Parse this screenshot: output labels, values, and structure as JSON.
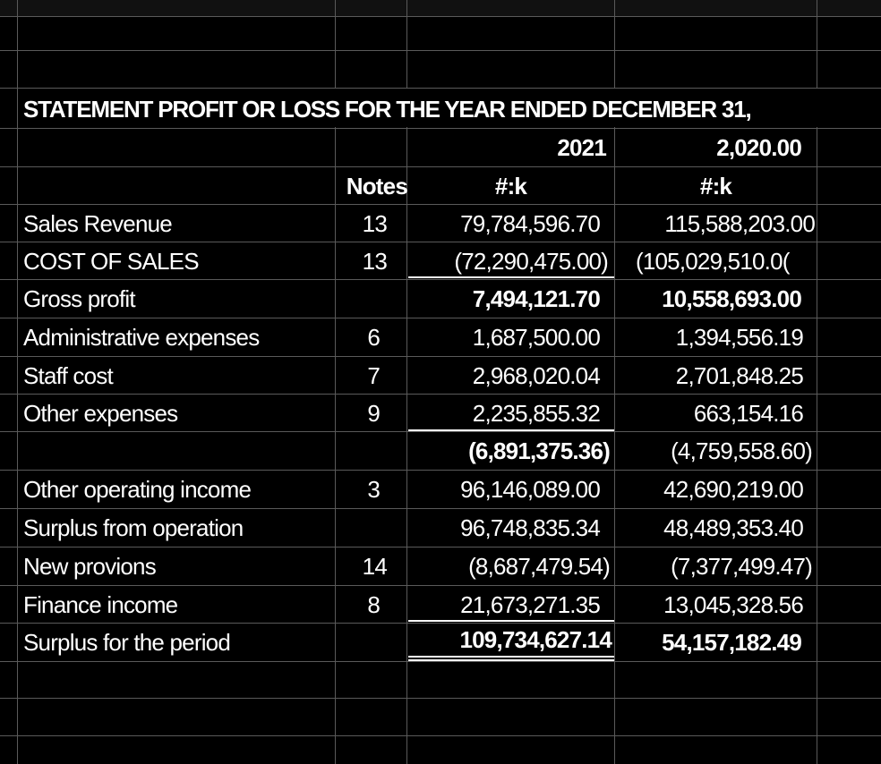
{
  "sheet": {
    "title": "STATEMENT PROFIT OR LOSS FOR  THE YEAR ENDED DECEMBER 31,",
    "header_row": {
      "year_current": "2021",
      "year_prior": "2,020.00"
    },
    "subheader_row": {
      "notes_label": "Notes",
      "currency_current": "#:k",
      "currency_prior": "#:k"
    },
    "rows": [
      {
        "label": "Sales Revenue",
        "note": "13",
        "current": "79,784,596.70",
        "prior": "115,588,203.00"
      },
      {
        "label": "COST OF SALES",
        "note": "13",
        "current": "(72,290,475.00)",
        "prior": "(105,029,510.0("
      },
      {
        "label": "Gross profit",
        "note": "",
        "current": "7,494,121.70",
        "prior": "10,558,693.00"
      },
      {
        "label": "Administrative expenses",
        "note": "6",
        "current": "1,687,500.00",
        "prior": "1,394,556.19"
      },
      {
        "label": "Staff cost",
        "note": "7",
        "current": "2,968,020.04",
        "prior": "2,701,848.25"
      },
      {
        "label": "Other expenses",
        "note": "9",
        "current": "2,235,855.32",
        "prior": "663,154.16"
      },
      {
        "label": "",
        "note": "",
        "current": "(6,891,375.36)",
        "prior": "(4,759,558.60)"
      },
      {
        "label": "Other operating income",
        "note": "3",
        "current": "96,146,089.00",
        "prior": "42,690,219.00"
      },
      {
        "label": "Surplus from  operation",
        "note": "",
        "current": "96,748,835.34",
        "prior": "48,489,353.40"
      },
      {
        "label": "New provions",
        "note": "14",
        "current": "(8,687,479.54)",
        "prior": "(7,377,499.47)"
      },
      {
        "label": "Finance income",
        "note": "8",
        "current": "21,673,271.35",
        "prior": "13,045,328.56"
      },
      {
        "label": "Surplus for the period",
        "note": "",
        "current": "109,734,627.14",
        "prior": "54,157,182.49"
      }
    ]
  }
}
